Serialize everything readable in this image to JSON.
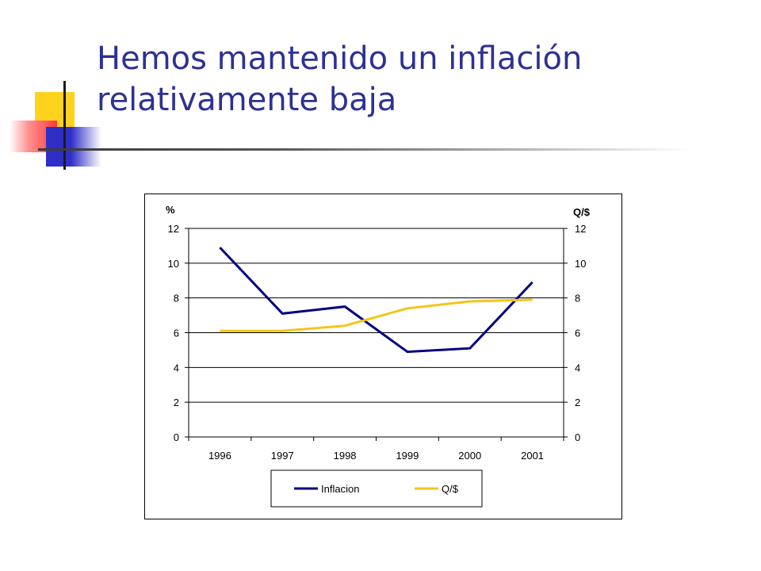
{
  "slide": {
    "title_line1": "Hemos mantenido un inflación",
    "title_line2": "relativamente baja"
  },
  "colors": {
    "title": "#2e3192",
    "inflacion": "#000080",
    "qdollar": "#f5c518",
    "deco_yellow": "#ffd21e",
    "deco_red": "#ff3a3a",
    "deco_blue": "#2f2fc8"
  },
  "chart_data": {
    "type": "line",
    "categories": [
      "1996",
      "1997",
      "1998",
      "1999",
      "2000",
      "2001"
    ],
    "series": [
      {
        "name": "Inflacion",
        "axis": "left",
        "color": "#000080",
        "values": [
          10.9,
          7.1,
          7.5,
          4.9,
          5.1,
          8.9
        ]
      },
      {
        "name": "Q/$",
        "axis": "right",
        "color": "#f5c518",
        "values": [
          6.1,
          6.1,
          6.4,
          7.4,
          7.8,
          7.9
        ]
      }
    ],
    "ylabel_left": "%",
    "ylabel_right": "Q/$",
    "ylim_left": [
      0,
      12
    ],
    "ylim_right": [
      0,
      12
    ],
    "yticks_left": [
      "0",
      "2",
      "4",
      "6",
      "8",
      "10",
      "12"
    ],
    "yticks_right": [
      "0",
      "2",
      "4",
      "6",
      "8",
      "10",
      "12"
    ],
    "grid": "horizontal",
    "legend": "bottom"
  }
}
